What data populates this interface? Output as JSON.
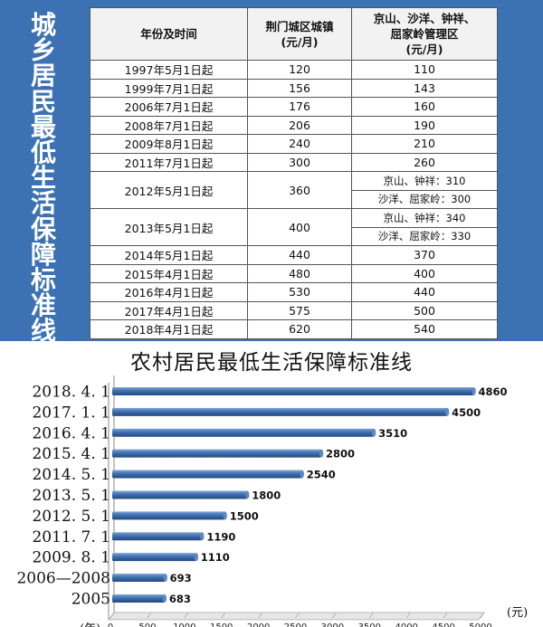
{
  "top_panel": {
    "vertical_title": "城乡居民最低生活保障标准线",
    "bg_color": "#3c72b3"
  },
  "urban_table": {
    "headers": {
      "col1": "年份及时间",
      "col2": [
        "荆门城区城镇",
        "(元/月)"
      ],
      "col3": [
        "京山、沙洋、钟祥、",
        "屈家岭管理区",
        "(元/月)"
      ]
    },
    "rows": [
      {
        "date": "1997年5月1日起",
        "urban": "120",
        "county": "110"
      },
      {
        "date": "1999年7月1日起",
        "urban": "156",
        "county": "143"
      },
      {
        "date": "2006年7月1日起",
        "urban": "176",
        "county": "160"
      },
      {
        "date": "2008年7月1日起",
        "urban": "206",
        "county": "190"
      },
      {
        "date": "2009年8月1日起",
        "urban": "240",
        "county": "210"
      },
      {
        "date": "2011年7月1日起",
        "urban": "300",
        "county": "260"
      },
      {
        "date": "2012年5月1日起",
        "urban": "360",
        "county": [
          "京山、钟祥：310",
          "沙洋、屈家岭：300"
        ]
      },
      {
        "date": "2013年5月1日起",
        "urban": "400",
        "county": [
          "京山、钟祥：340",
          "沙洋、屈家岭：330"
        ]
      },
      {
        "date": "2014年5月1日起",
        "urban": "440",
        "county": "370"
      },
      {
        "date": "2015年4月1日起",
        "urban": "480",
        "county": "400"
      },
      {
        "date": "2016年4月1日起",
        "urban": "530",
        "county": "440"
      },
      {
        "date": "2017年4月1日起",
        "urban": "575",
        "county": "500"
      },
      {
        "date": "2018年4月1日起",
        "urban": "620",
        "county": "540"
      }
    ]
  },
  "chart_data": {
    "type": "bar",
    "orientation": "horizontal",
    "title": "农村居民最低生活保障标准线",
    "categories": [
      "2018. 4. 1",
      "2017. 1. 1",
      "2016. 4. 1",
      "2015. 4. 1",
      "2014. 5. 1",
      "2013. 5. 1",
      "2012. 5. 1",
      "2011. 7. 1",
      "2009. 8. 1",
      "2006—2008",
      "2005"
    ],
    "values": [
      4860,
      4500,
      3510,
      2800,
      2540,
      1800,
      1500,
      1190,
      1110,
      693,
      683
    ],
    "value_labels": [
      "4860",
      "4500",
      "3510",
      "2800",
      "2540",
      "1800",
      "1500",
      "1190",
      "1110",
      "693",
      "683"
    ],
    "xlim": [
      0,
      5000
    ],
    "x_ticks": [
      "0",
      "500",
      "1000",
      "1500",
      "2000",
      "2500",
      "3000",
      "3500",
      "4000",
      "4500",
      "5000"
    ],
    "y_unit_label": "(年)",
    "x_unit_label": "(元)",
    "bar_color": "#3d6fb0",
    "grid": false
  }
}
